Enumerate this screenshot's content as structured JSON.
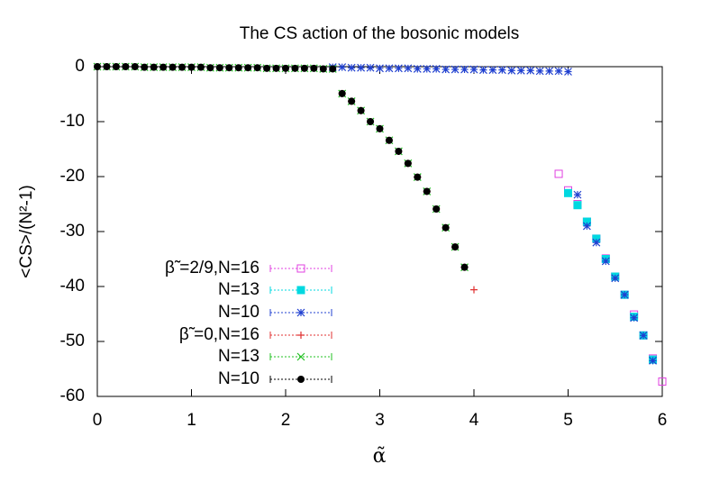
{
  "chart_data": {
    "type": "scatter",
    "title": "The CS action of the bosonic models",
    "x_label": "α̃",
    "y_label": "<CS>/(N²-1)",
    "xlim": [
      0,
      6
    ],
    "ylim": [
      -60,
      0
    ],
    "xticks": [
      0,
      1,
      2,
      3,
      4,
      5,
      6
    ],
    "yticks": [
      -60,
      -50,
      -40,
      -30,
      -20,
      -10,
      0
    ],
    "legend": "left",
    "series": [
      {
        "name": "β̃ =2/9,N=16",
        "color": "#e040e0",
        "marker": "open-square",
        "x": [
          4.9,
          5.0,
          5.1,
          5.2,
          5.3,
          5.4,
          5.5,
          5.6,
          5.7,
          5.8,
          5.9,
          6.0
        ],
        "values": [
          -19.5,
          -22.5,
          -25.0,
          -28.2,
          -31.3,
          -34.9,
          -38.2,
          -41.5,
          -45.1,
          -48.9,
          -53.1,
          -57.3
        ]
      },
      {
        "name": "N=13",
        "color": "#00d8e0",
        "marker": "filled-square",
        "x": [
          5.0,
          5.1,
          5.2,
          5.3,
          5.4,
          5.5,
          5.6,
          5.7,
          5.8,
          5.9
        ],
        "values": [
          -23.0,
          -25.2,
          -28.2,
          -31.3,
          -35.0,
          -38.2,
          -41.5,
          -45.5,
          -48.9,
          -53.3
        ]
      },
      {
        "name": "N=10",
        "color": "#2040d0",
        "marker": "star",
        "x": [
          2.5,
          2.6,
          2.7,
          2.8,
          2.9,
          3.0,
          3.1,
          3.2,
          3.3,
          3.4,
          3.5,
          3.6,
          3.7,
          3.8,
          3.9,
          4.0,
          4.1,
          4.2,
          4.3,
          4.4,
          4.5,
          4.6,
          4.7,
          4.8,
          4.9,
          5.0,
          5.1,
          5.2,
          5.3,
          5.4,
          5.5,
          5.6,
          5.7,
          5.8,
          5.9
        ],
        "values": [
          -0.1,
          -0.1,
          -0.2,
          -0.2,
          -0.2,
          -0.3,
          -0.3,
          -0.3,
          -0.3,
          -0.4,
          -0.4,
          -0.4,
          -0.5,
          -0.5,
          -0.5,
          -0.5,
          -0.6,
          -0.6,
          -0.6,
          -0.7,
          -0.7,
          -0.7,
          -0.8,
          -0.8,
          -0.8,
          -0.9,
          -23.3,
          -29.0,
          -32.0,
          -35.4,
          -38.5,
          -41.5,
          -45.7,
          -48.9,
          -53.5
        ]
      },
      {
        "name": "β̃ =0,N=16",
        "color": "#e03030",
        "marker": "plus",
        "x": [
          2.6,
          2.7,
          2.8,
          2.9,
          3.0,
          3.1,
          3.2,
          3.3,
          3.4,
          3.5,
          3.6,
          3.7,
          3.8,
          3.9,
          4.0
        ],
        "values": [
          -4.9,
          -6.3,
          -8.0,
          -10.0,
          -11.3,
          -13.4,
          -15.4,
          -17.6,
          -20.1,
          -22.7,
          -25.9,
          -29.3,
          -32.8,
          -36.5,
          -40.6
        ]
      },
      {
        "name": "N=13",
        "color": "#20c020",
        "marker": "cross",
        "x": [
          0,
          0.1,
          0.2,
          0.3,
          0.4,
          0.5,
          0.6,
          0.7,
          0.8,
          0.9,
          1.0,
          1.1,
          1.2,
          1.3,
          1.4,
          1.5,
          1.6,
          1.7,
          1.8,
          1.9,
          2.0,
          2.1,
          2.2,
          2.3,
          2.4,
          2.5,
          2.6,
          2.7,
          2.8,
          2.9,
          3.0,
          3.1,
          3.2,
          3.3,
          3.4,
          3.5,
          3.6,
          3.7,
          3.8,
          3.9
        ],
        "values": [
          0,
          0,
          0,
          0,
          0,
          -0.1,
          -0.1,
          -0.1,
          -0.1,
          -0.1,
          -0.1,
          -0.1,
          -0.2,
          -0.2,
          -0.2,
          -0.2,
          -0.2,
          -0.2,
          -0.3,
          -0.3,
          -0.3,
          -0.3,
          -0.3,
          -0.3,
          -0.4,
          -0.4,
          -4.9,
          -6.3,
          -8.0,
          -10.0,
          -11.3,
          -13.4,
          -15.4,
          -17.6,
          -20.1,
          -22.7,
          -25.9,
          -29.3,
          -32.8,
          -36.5
        ]
      },
      {
        "name": "N=10",
        "color": "#000000",
        "marker": "filled-circle",
        "x": [
          0,
          0.1,
          0.2,
          0.3,
          0.4,
          0.5,
          0.6,
          0.7,
          0.8,
          0.9,
          1.0,
          1.1,
          1.2,
          1.3,
          1.4,
          1.5,
          1.6,
          1.7,
          1.8,
          1.9,
          2.0,
          2.1,
          2.2,
          2.3,
          2.4,
          2.5,
          2.6,
          2.7,
          2.8,
          2.9,
          3.0,
          3.1,
          3.2,
          3.3,
          3.4,
          3.5,
          3.6,
          3.7,
          3.8,
          3.9
        ],
        "values": [
          0,
          0,
          0,
          0,
          0,
          -0.1,
          -0.1,
          -0.1,
          -0.1,
          -0.1,
          -0.1,
          -0.1,
          -0.2,
          -0.2,
          -0.2,
          -0.2,
          -0.2,
          -0.2,
          -0.3,
          -0.3,
          -0.3,
          -0.3,
          -0.3,
          -0.3,
          -0.4,
          -0.4,
          -4.9,
          -6.3,
          -8.0,
          -10.0,
          -11.3,
          -13.4,
          -15.4,
          -17.6,
          -20.1,
          -22.7,
          -25.9,
          -29.3,
          -32.8,
          -36.5
        ]
      }
    ]
  }
}
